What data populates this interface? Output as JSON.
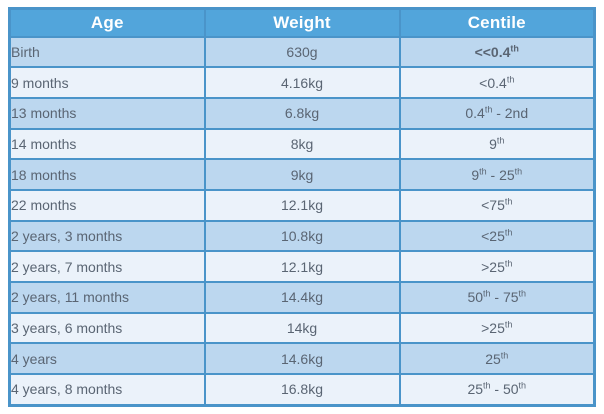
{
  "table": {
    "columns": [
      {
        "label": "Age"
      },
      {
        "label": "Weight"
      },
      {
        "label": "Centile"
      }
    ],
    "rows": [
      {
        "age": "Birth",
        "weight": "630g",
        "centile": "<<0.4{th}",
        "bold_centile": true
      },
      {
        "age": "9 months",
        "weight": "4.16kg",
        "centile": "<0.4{th}",
        "bold_centile": false
      },
      {
        "age": "13 months",
        "weight": "6.8kg",
        "centile": "0.4{th} - 2nd",
        "bold_centile": false
      },
      {
        "age": "14 months",
        "weight": "8kg",
        "centile": "9{th}",
        "bold_centile": false
      },
      {
        "age": "18 months",
        "weight": "9kg",
        "centile": "9{th} - 25{th}",
        "bold_centile": false
      },
      {
        "age": "22 months",
        "weight": "12.1kg",
        "centile": "<75{th}",
        "bold_centile": false
      },
      {
        "age": "2 years, 3 months",
        "weight": "10.8kg",
        "centile": "<25{th}",
        "bold_centile": false
      },
      {
        "age": "2 years, 7 months",
        "weight": "12.1kg",
        "centile": ">25{th}",
        "bold_centile": false
      },
      {
        "age": "2 years, 11 months",
        "weight": "14.4kg",
        "centile": "50{th} - 75{th}",
        "bold_centile": false
      },
      {
        "age": "3 years, 6 months",
        "weight": "14kg",
        "centile": ">25{th}",
        "bold_centile": false
      },
      {
        "age": "4 years",
        "weight": "14.6kg",
        "centile": "25{th}",
        "bold_centile": false
      },
      {
        "age": "4 years, 8 months",
        "weight": "16.8kg",
        "centile": "25{th} - 50{th}",
        "bold_centile": false
      }
    ]
  },
  "colors": {
    "header_bg": "#52A5DB",
    "header_text": "#FFFFFF",
    "border_color": "#4A94C9",
    "row_odd": "#BCD7EF",
    "row_even": "#EBF2FA",
    "body_text": "#5A6573",
    "bold_text": "#3C434E"
  }
}
